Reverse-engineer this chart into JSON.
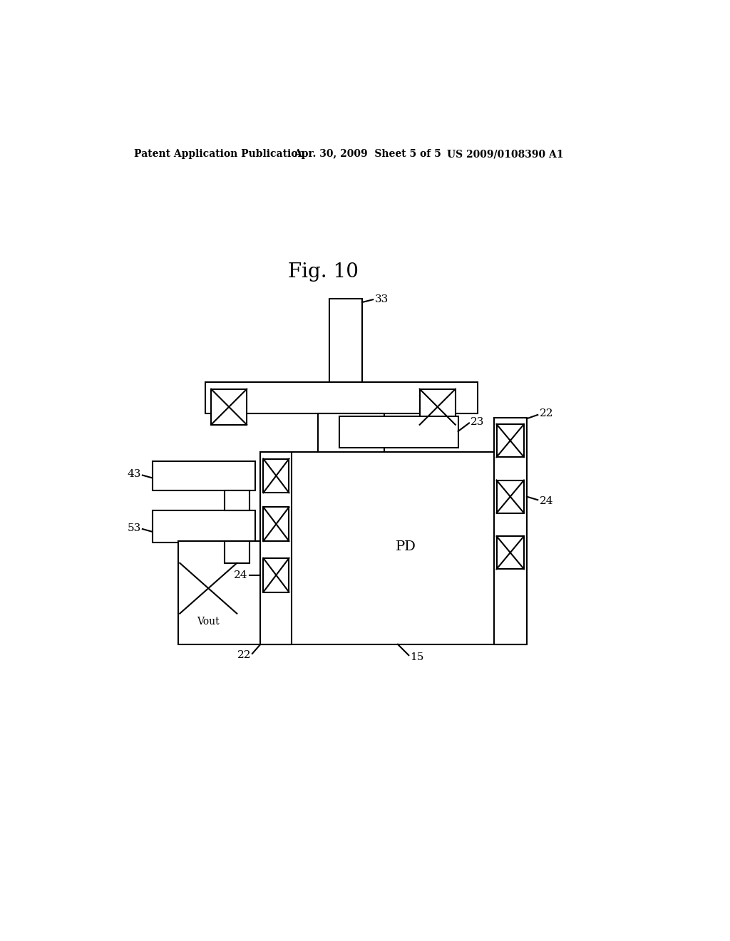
{
  "bg_color": "#ffffff",
  "header_left": "Patent Application Publication",
  "header_mid": "Apr. 30, 2009  Sheet 5 of 5",
  "header_right": "US 2009/0108390 A1",
  "fig_title": "Fig. 10",
  "line_color": "#000000",
  "lw": 1.5
}
